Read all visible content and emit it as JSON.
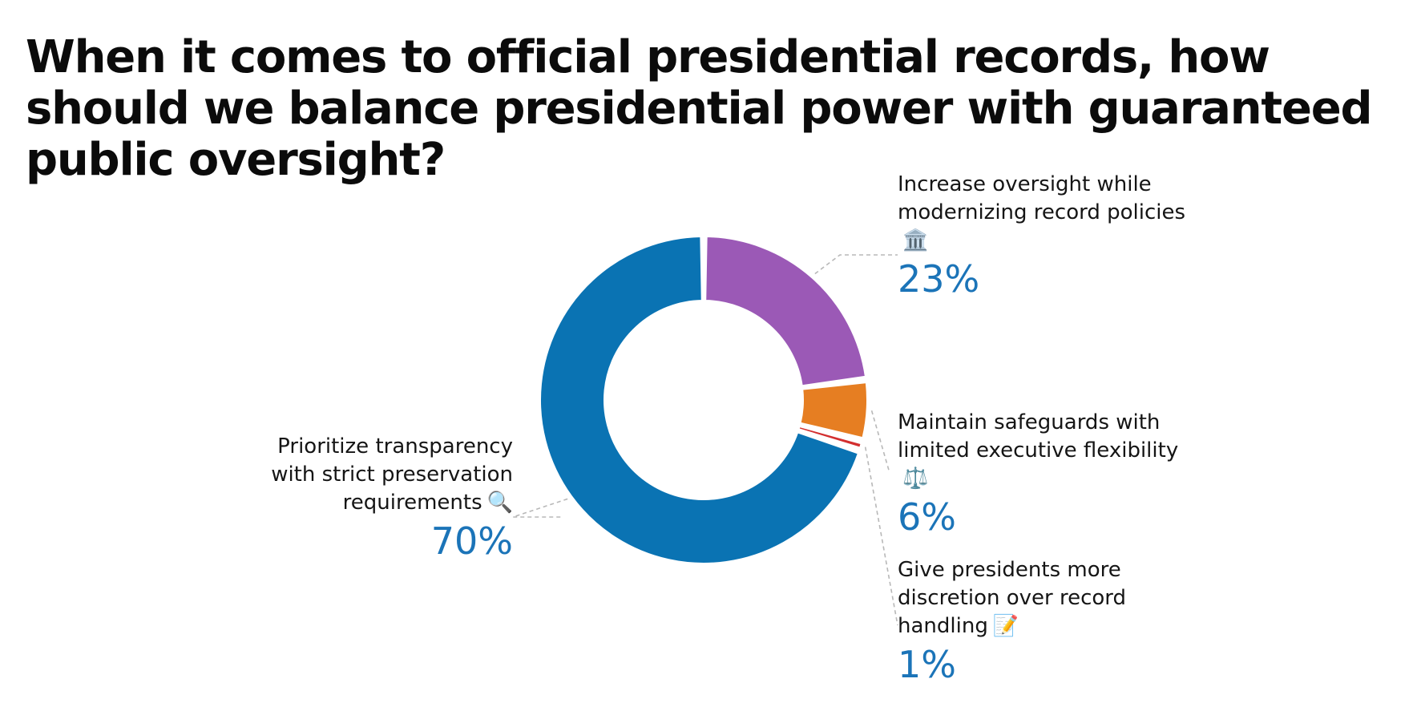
{
  "title": "When it comes to official presidential records, how should we balance presidential power with guaranteed public oversight?",
  "chart_data": {
    "type": "pie",
    "title": "When it comes to official presidential records, how should we balance presidential power with guaranteed public oversight?",
    "categories": [
      "Increase oversight while modernizing record policies",
      "Maintain safeguards with limited executive flexibility",
      "Give presidents more discretion over record handling",
      "Prioritize transparency with strict preservation requirements"
    ],
    "values": [
      23,
      6,
      1,
      70
    ],
    "colors": [
      "#9b59b6",
      "#e67e22",
      "#d32f2f",
      "#0a73b3"
    ],
    "donut": true
  },
  "labels": [
    {
      "text": "Increase oversight while modernizing record policies",
      "emoji": "🏛️",
      "pct": "23%"
    },
    {
      "text": "Maintain safeguards with limited executive flexibility",
      "emoji": "⚖️",
      "pct": "6%"
    },
    {
      "text": "Give presidents more discretion over record handling",
      "emoji": "📝",
      "pct": "1%"
    },
    {
      "text": "Prioritize transparency with strict preservation requirements",
      "emoji": "🔍",
      "pct": "70%"
    }
  ]
}
